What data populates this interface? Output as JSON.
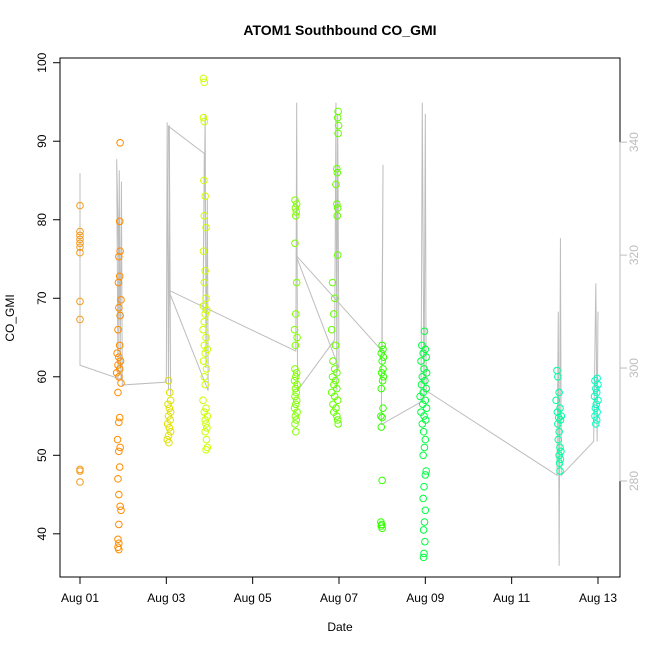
{
  "chart_data": {
    "type": "scatter",
    "title": "ATOM1 Southbound CO_GMI",
    "xlabel": "Date",
    "ylabel": "CO_GMI",
    "xlim": [
      0.537,
      13.51
    ],
    "ylim": [
      34.5,
      100.6
    ],
    "y2lim": [
      263,
      354.9
    ],
    "xticks": [
      {
        "value": 1,
        "label": "Aug 01"
      },
      {
        "value": 3,
        "label": "Aug 03"
      },
      {
        "value": 5,
        "label": "Aug 05"
      },
      {
        "value": 7,
        "label": "Aug 07"
      },
      {
        "value": 9,
        "label": "Aug 09"
      },
      {
        "value": 11,
        "label": "Aug 11"
      },
      {
        "value": 13,
        "label": "Aug 13"
      }
    ],
    "yticks": [
      40,
      50,
      60,
      70,
      80,
      90,
      100
    ],
    "y2ticks": [
      280,
      300,
      320,
      340
    ],
    "series": [
      {
        "color": "#f39c1c",
        "x": [
          1,
          1,
          1,
          1,
          1,
          1,
          1,
          1,
          1,
          1,
          1,
          1
        ],
        "values": [
          81.8,
          78.5,
          78,
          77.5,
          77,
          76.5,
          75.8,
          69.6,
          67.3,
          48.2,
          48,
          46.6
        ]
      },
      {
        "color": "#ff8c00",
        "x": [
          1.93,
          1.92,
          1.93,
          1.9,
          1.92,
          1.89,
          1.95,
          1.9,
          1.93,
          1.88,
          1.92,
          1.86,
          1.9,
          1.94,
          1.88,
          1.92,
          1.85,
          1.9,
          1.95,
          1.88,
          1.92,
          1.9,
          1.87,
          1.93,
          1.9,
          1.92,
          1.88,
          1.9,
          1.93,
          1.95,
          1.9,
          1.88,
          1.9,
          1.88,
          1.9
        ],
        "values": [
          89.8,
          79.8,
          76,
          75.3,
          72.8,
          72,
          69.8,
          68.8,
          67.8,
          66,
          64,
          63,
          62.5,
          62,
          61.5,
          61,
          60.5,
          60,
          59.2,
          58,
          54.8,
          54.2,
          52,
          51,
          50.5,
          48.5,
          47,
          45,
          43.5,
          43,
          41.2,
          39.3,
          38.8,
          38.3,
          38
        ]
      },
      {
        "color": "#e0e000",
        "x": [
          3.05,
          3.08,
          3.1,
          3.04,
          3.07,
          3.1,
          3.05,
          3.09,
          3.03,
          3.07,
          3.1,
          3.05,
          3.02,
          3.06
        ],
        "values": [
          59.5,
          58,
          57,
          56.5,
          56,
          55.5,
          55,
          54.5,
          54,
          53.5,
          53,
          52.5,
          52,
          51.6
        ]
      },
      {
        "color": "#ccff00",
        "x": [
          3.86,
          3.88,
          3.86,
          3.88,
          3.87,
          3.9,
          3.88,
          3.92,
          3.86,
          3.9,
          3.88,
          3.92,
          3.86,
          3.94,
          3.9,
          3.88,
          3.85,
          3.92,
          3.88,
          3.95,
          3.9,
          3.86,
          3.93,
          3.88,
          3.9,
          3.85,
          3.92,
          3.88,
          3.95,
          3.9,
          3.92,
          3.94,
          3.9,
          3.93,
          3.95,
          3.92
        ],
        "values": [
          98,
          97.5,
          93,
          92.5,
          85,
          83,
          80.5,
          79,
          76,
          73.5,
          72,
          70,
          69,
          68.5,
          68,
          67,
          66,
          65,
          64,
          63.5,
          63,
          62,
          61,
          60,
          59,
          57,
          56,
          55.5,
          55,
          54.5,
          54,
          53.5,
          53,
          52,
          51,
          50.7
        ]
      },
      {
        "color": "#80ff00",
        "x": [
          5.98,
          6.02,
          5.99,
          6.01,
          6.0,
          5.98,
          6.02,
          6.0,
          5.97,
          6.03,
          5.99,
          5.98,
          6.02,
          6.0,
          5.97,
          6.03,
          5.99,
          6.01,
          5.98,
          6.02,
          6.0,
          5.97,
          6.03,
          5.99,
          6.01,
          5.98,
          6.0
        ],
        "values": [
          82.5,
          82,
          81.5,
          81,
          80.5,
          77,
          72,
          68,
          66,
          65,
          64,
          61,
          60.5,
          60,
          59.5,
          59,
          58.5,
          58,
          57.5,
          57,
          56.5,
          56,
          55.5,
          55,
          54.5,
          54,
          53
        ]
      },
      {
        "color": "#66ff00",
        "x": [
          6.98,
          6.97,
          6.99,
          6.98,
          6.95,
          6.96,
          6.93,
          6.95,
          6.97,
          6.96,
          6.97,
          6.85,
          6.9,
          6.88,
          6.83,
          6.92,
          6.86,
          6.9,
          6.95,
          6.85,
          6.92,
          6.88,
          6.95,
          6.83,
          6.9,
          6.97,
          6.86,
          6.93,
          6.88,
          6.95,
          6.97,
          6.98
        ],
        "values": [
          93.8,
          93,
          92,
          91,
          86.5,
          86,
          84.5,
          82,
          81.5,
          80.5,
          75.5,
          72,
          70,
          68,
          66,
          64,
          62,
          61,
          60.5,
          60,
          59.5,
          59,
          58.5,
          58,
          57.5,
          57,
          56.5,
          56,
          55.5,
          55,
          54.5,
          54
        ]
      },
      {
        "color": "#33ff00",
        "x": [
          8.0,
          8.02,
          7.98,
          8.03,
          8.0,
          8.02,
          7.99,
          8.03,
          8.01,
          7.98,
          8.02,
          7.97,
          8.0,
          7.98,
          8.0,
          7.97,
          7.99,
          7.98,
          8.0
        ],
        "values": [
          64,
          63.5,
          63,
          62.5,
          62,
          61,
          60.5,
          60,
          59.5,
          58.5,
          56,
          55,
          54.8,
          53.6,
          46.8,
          41.5,
          41.2,
          41,
          40.7
        ]
      },
      {
        "color": "#00ff40",
        "x": [
          8.98,
          8.92,
          9.0,
          8.95,
          9.02,
          8.9,
          8.97,
          9.03,
          8.93,
          8.99,
          8.91,
          9.02,
          8.95,
          8.88,
          9.0,
          8.94,
          9.03,
          8.9,
          8.97,
          9.01,
          8.93,
          8.96,
          9.0,
          8.98,
          8.95,
          9.02,
          9.0,
          8.97,
          8.95,
          9.0,
          8.98,
          8.96,
          8.99,
          8.97,
          8.96
        ],
        "values": [
          65.8,
          64,
          63.5,
          63,
          62.5,
          62,
          61,
          60.5,
          60,
          59.5,
          59,
          58.5,
          58,
          57.5,
          57,
          56.5,
          56,
          55.5,
          55,
          54.5,
          54,
          53,
          52,
          51,
          50,
          48,
          47.5,
          46,
          44.5,
          43,
          41.5,
          40.5,
          39,
          37.5,
          37
        ]
      },
      {
        "color": "#00ffa0",
        "x": [
          12.05,
          12.07,
          12.1,
          12.03,
          12.12,
          12.06,
          12.15,
          12.09,
          12.13,
          12.07,
          12.1,
          12.08,
          12.12,
          12.14,
          12.1,
          12.13,
          12.11,
          12.12
        ],
        "values": [
          60.8,
          60,
          58,
          57,
          56,
          55.5,
          55,
          54.8,
          54.5,
          54,
          53,
          52,
          51,
          50.5,
          50,
          49.5,
          49,
          48
        ]
      },
      {
        "color": "#00ffc0",
        "x": [
          12.98,
          12.93,
          13.0,
          12.95,
          12.97,
          12.92,
          13.0,
          12.96,
          12.94,
          12.98,
          12.93,
          12.97,
          12.95
        ],
        "values": [
          59.8,
          59.5,
          59,
          58.5,
          58,
          57.5,
          57,
          56.5,
          56,
          55.5,
          55,
          54.5,
          54
        ]
      },
      {
        "type": "line",
        "axis": "y2",
        "color": "#bdbdbd",
        "x": [
          1.0,
          1.0,
          1.95,
          1.85,
          1.88,
          1.91,
          1.93,
          1.96,
          1.98,
          3.0,
          3.02,
          3.05,
          3.07,
          3.1,
          3.05,
          3.88,
          3.85,
          3.9,
          3.92,
          3.95,
          3.97,
          3.05,
          6.0,
          6.02,
          6.04,
          6.9,
          6.93,
          6.95,
          6.97,
          7.0,
          6.0,
          8.0,
          8.02,
          7.98,
          8.9,
          8.93,
          8.97,
          9.0,
          9.02,
          12.05,
          12.08,
          12.1,
          12.13,
          12.15,
          12.9,
          12.95,
          12.98,
          13.0
        ],
        "values": [
          334.5,
          300.5,
          298,
          337,
          298,
          335,
          300,
          333,
          297,
          297.5,
          343.5,
          296,
          343,
          295,
          342.8,
          338,
          310,
          345,
          300,
          330,
          296,
          313.8,
          303,
          347,
          296,
          305,
          347,
          296,
          345,
          300,
          320,
          303,
          336,
          290,
          294,
          347,
          294,
          345,
          296,
          281,
          310,
          265,
          323,
          281,
          287,
          315,
          287,
          310
        ]
      }
    ]
  }
}
